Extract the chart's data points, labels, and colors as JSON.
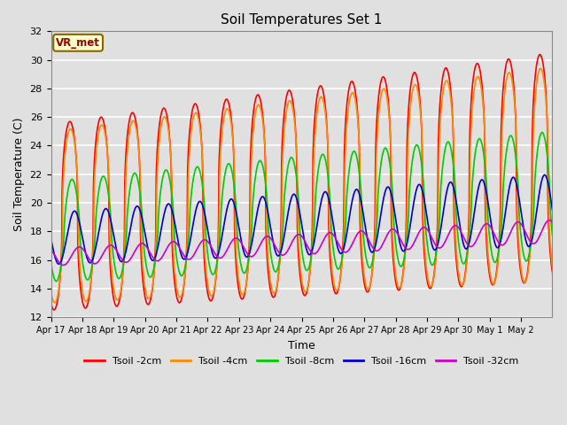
{
  "title": "Soil Temperatures Set 1",
  "xlabel": "Time",
  "ylabel": "Soil Temperature (C)",
  "ylim": [
    12,
    32
  ],
  "background_color": "#e0e0e0",
  "plot_bg_color": "#e0e0e0",
  "grid_color": "white",
  "annotation_text": "VR_met",
  "annotation_facecolor": "#ffffcc",
  "annotation_edgecolor": "#886600",
  "annotation_textcolor": "#990000",
  "xtick_labels": [
    "Apr 17",
    "Apr 18",
    "Apr 19",
    "Apr 20",
    "Apr 21",
    "Apr 22",
    "Apr 23",
    "Apr 24",
    "Apr 25",
    "Apr 26",
    "Apr 27",
    "Apr 28",
    "Apr 29",
    "Apr 30",
    "May 1",
    "May 2"
  ],
  "series": [
    {
      "label": "Tsoil -2cm",
      "color": "#ff0000",
      "lw": 1.2
    },
    {
      "label": "Tsoil -4cm",
      "color": "#ff8800",
      "lw": 1.2
    },
    {
      "label": "Tsoil -8cm",
      "color": "#00cc00",
      "lw": 1.2
    },
    {
      "label": "Tsoil -16cm",
      "color": "#0000cc",
      "lw": 1.2
    },
    {
      "label": "Tsoil -32cm",
      "color": "#cc00cc",
      "lw": 1.2
    }
  ]
}
